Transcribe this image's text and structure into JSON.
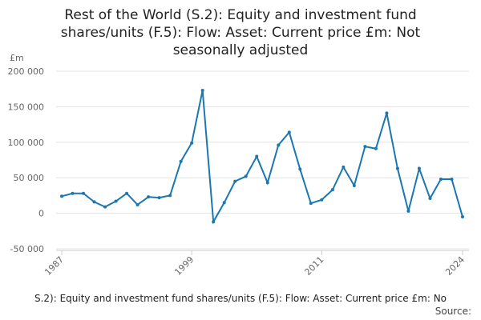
{
  "chart_data": {
    "type": "line",
    "title": "Rest of the World (S.2): Equity and investment fund shares/units (F.5): Flow: Asset: Current price £m: Not seasonally adjusted",
    "y_label": "£m",
    "footer": "S.2): Equity and investment fund shares/units (F.5): Flow: Asset: Current price £m: No",
    "source": "Source:",
    "x": [
      1987,
      1988,
      1989,
      1990,
      1991,
      1992,
      1993,
      1994,
      1995,
      1996,
      1997,
      1998,
      1999,
      2000,
      2001,
      2002,
      2003,
      2004,
      2005,
      2006,
      2007,
      2008,
      2009,
      2010,
      2011,
      2012,
      2013,
      2014,
      2015,
      2016,
      2017,
      2018,
      2019,
      2020,
      2021,
      2022,
      2023,
      2024
    ],
    "series": [
      {
        "name": "Equity and investment fund shares/units",
        "color": "#1a77b0",
        "values": [
          24000,
          28000,
          28000,
          16000,
          9000,
          17000,
          28000,
          12000,
          23000,
          22000,
          25000,
          73000,
          99000,
          173000,
          -12000,
          15000,
          45000,
          52000,
          80000,
          43000,
          96000,
          114000,
          62000,
          14000,
          19000,
          33000,
          65000,
          39000,
          94000,
          91000,
          141000,
          63000,
          3000,
          63000,
          21000,
          48000,
          48000,
          -5000
        ]
      }
    ],
    "xlim": [
      1987,
      2024
    ],
    "xticks": [
      1987,
      1999,
      2011,
      2024
    ],
    "ylim": [
      -50000,
      200000
    ],
    "yticks": [
      {
        "value": -50000,
        "label": "-50 000"
      },
      0,
      {
        "value": 50000,
        "label": "50 000"
      },
      {
        "value": 100000,
        "label": "100 000"
      },
      {
        "value": 150000,
        "label": "150 000"
      },
      {
        "value": 200000,
        "label": "200 000"
      }
    ],
    "grid": true
  }
}
